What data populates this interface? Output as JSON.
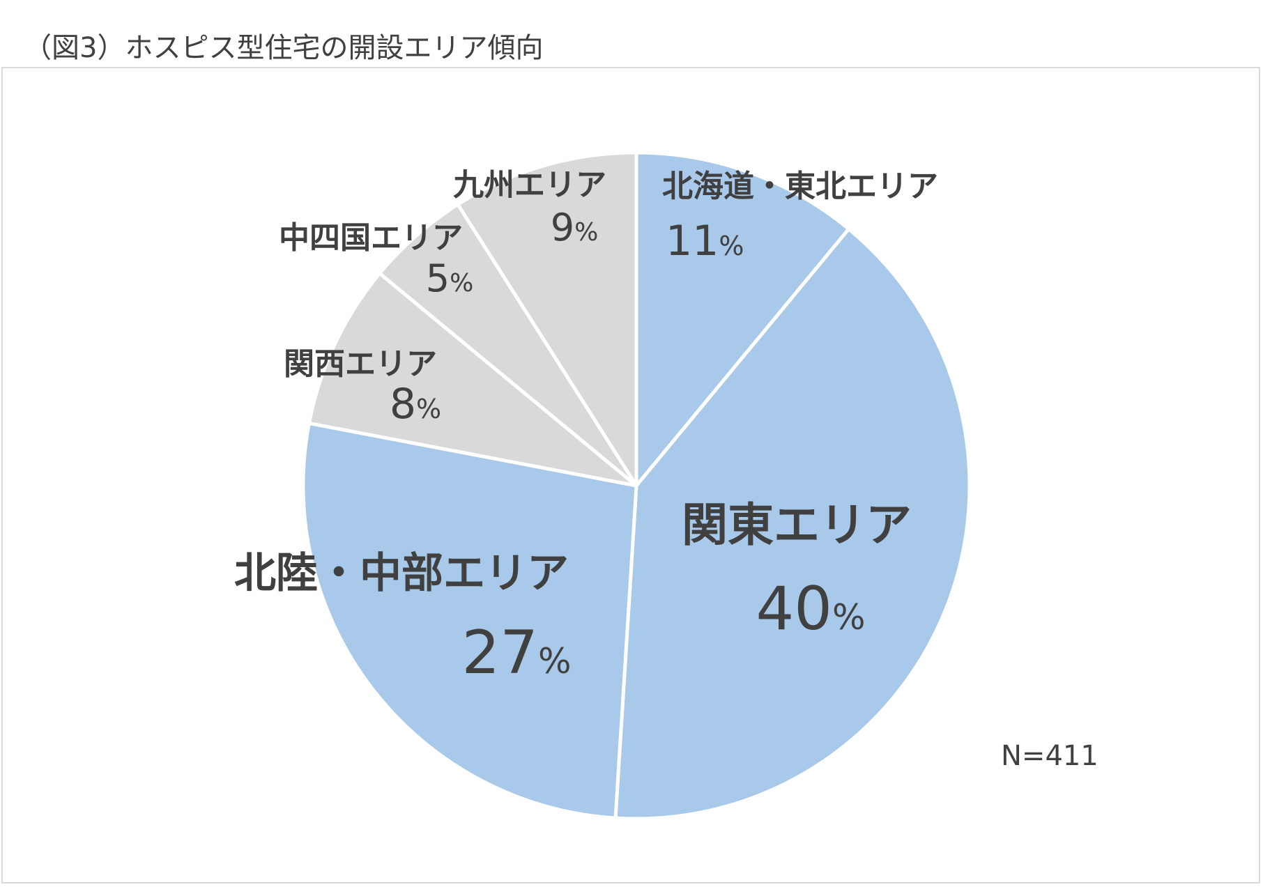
{
  "title": "（図3）ホスピス型住宅の開設エリア傾向",
  "note": "N=411",
  "colors": {
    "blue": "#a8c9ea",
    "gray": "#d9d9d9",
    "text": "#404040",
    "edge": "#ffffff"
  },
  "chart_data": {
    "type": "pie",
    "title": "（図3）ホスピス型住宅の開設エリア傾向",
    "slices": [
      {
        "name": "北海道・東北エリア",
        "value": 11,
        "label": "11",
        "unit": "%",
        "color": "#a8c9ea"
      },
      {
        "name": "関東エリア",
        "value": 40,
        "label": "40",
        "unit": "%",
        "color": "#a8c9ea"
      },
      {
        "name": "北陸・中部エリア",
        "value": 27,
        "label": "27",
        "unit": "%",
        "color": "#a8c9ea"
      },
      {
        "name": "関西エリア",
        "value": 8,
        "label": "8",
        "unit": "%",
        "color": "#d9d9d9"
      },
      {
        "name": "中四国エリア",
        "value": 5,
        "label": "5",
        "unit": "%",
        "color": "#d9d9d9"
      },
      {
        "name": "九州エリア",
        "value": 9,
        "label": "9",
        "unit": "%",
        "color": "#d9d9d9"
      }
    ]
  }
}
